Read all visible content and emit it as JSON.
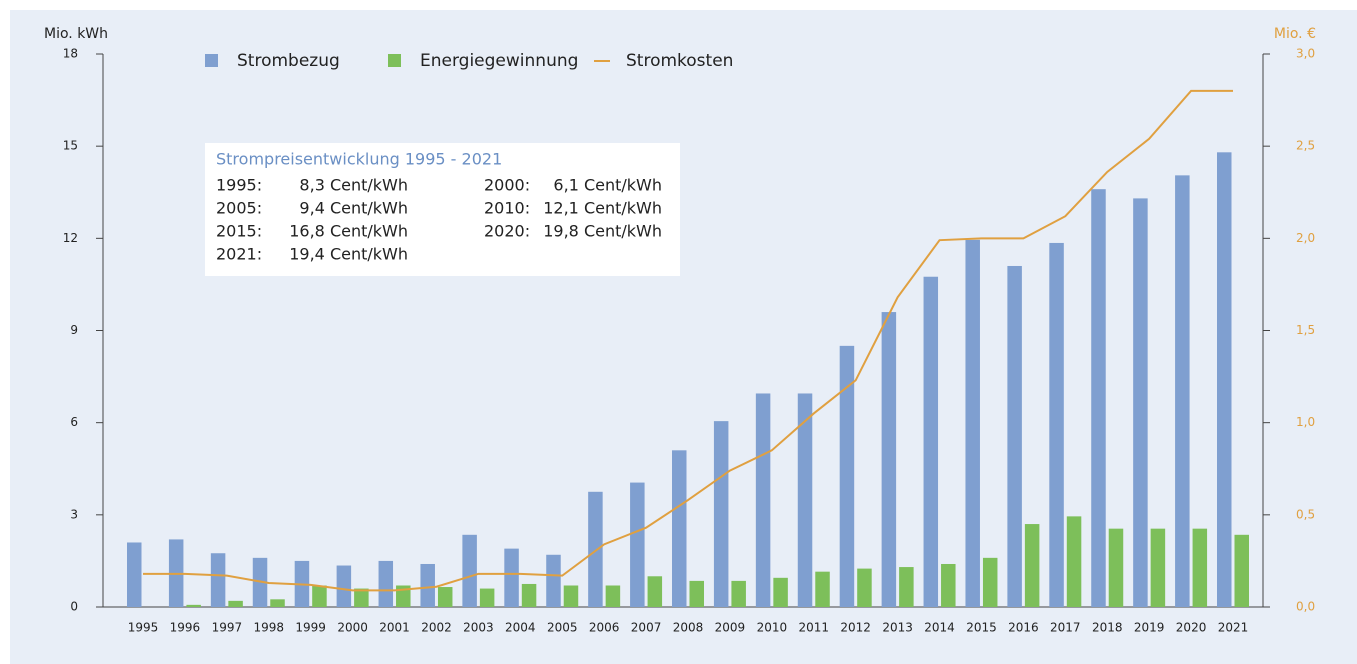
{
  "chart_data": {
    "type": "bar",
    "categories": [
      "1995",
      "1996",
      "1997",
      "1998",
      "1999",
      "2000",
      "2001",
      "2002",
      "2003",
      "2004",
      "2005",
      "2006",
      "2007",
      "2008",
      "2009",
      "2010",
      "2011",
      "2012",
      "2013",
      "2014",
      "2015",
      "2016",
      "2017",
      "2018",
      "2019",
      "2020",
      "2021"
    ],
    "series": [
      {
        "name": "Strombezug",
        "color": "#7f9fd0",
        "type": "bar",
        "values": [
          2.1,
          2.2,
          1.75,
          1.6,
          1.5,
          1.35,
          1.5,
          1.4,
          2.35,
          1.9,
          1.7,
          3.75,
          4.05,
          5.1,
          6.05,
          6.95,
          6.95,
          8.5,
          9.6,
          10.75,
          11.95,
          11.1,
          11.85,
          13.6,
          13.3,
          14.05,
          14.8
        ]
      },
      {
        "name": "Energiegewinnung",
        "color": "#7dbf5a",
        "type": "bar",
        "values": [
          0,
          0.07,
          0.2,
          0.25,
          0.7,
          0.6,
          0.7,
          0.65,
          0.6,
          0.75,
          0.7,
          0.7,
          1.0,
          0.85,
          0.85,
          0.95,
          1.15,
          1.25,
          1.3,
          1.4,
          1.6,
          2.7,
          2.95,
          2.55,
          2.55,
          2.55,
          2.35
        ]
      },
      {
        "name": "Stromkosten",
        "color": "#e0a040",
        "type": "line",
        "axis": "y2",
        "values": [
          0.18,
          0.18,
          0.17,
          0.13,
          0.12,
          0.09,
          0.09,
          0.11,
          0.18,
          0.18,
          0.17,
          0.34,
          0.43,
          0.58,
          0.74,
          0.85,
          1.05,
          1.23,
          1.68,
          1.99,
          2.0,
          2.0,
          2.12,
          2.36,
          2.54,
          2.8,
          2.8
        ]
      }
    ],
    "y_label": "Mio. kWh",
    "y2_label": "Mio. €",
    "ylim": [
      0,
      18
    ],
    "yticks": [
      0,
      3,
      6,
      9,
      12,
      15,
      18
    ],
    "y2lim": [
      0,
      3
    ],
    "y2ticks": [
      {
        "value": 0,
        "label": "0,0"
      },
      {
        "value": 0.5,
        "label": "0,5"
      },
      {
        "value": 1,
        "label": "1,0"
      },
      {
        "value": 1.5,
        "label": "1,5"
      },
      {
        "value": 2,
        "label": "2,0"
      },
      {
        "value": 2.5,
        "label": "2,5"
      },
      {
        "value": 3,
        "label": "3,0"
      }
    ],
    "legend": "top",
    "annotation": {
      "title": "Strompreisentwicklung 1995 - 2021",
      "entries": [
        {
          "year": "1995:",
          "price": "8,3 Cent/kWh"
        },
        {
          "year": "2000:",
          "price": "6,1 Cent/kWh"
        },
        {
          "year": "2005:",
          "price": "9,4 Cent/kWh"
        },
        {
          "year": "2010:",
          "price": "12,1 Cent/kWh"
        },
        {
          "year": "2015:",
          "price": "16,8 Cent/kWh"
        },
        {
          "year": "2020:",
          "price": "19,8 Cent/kWh"
        },
        {
          "year": "2021:",
          "price": "19,4 Cent/kWh"
        }
      ]
    }
  }
}
